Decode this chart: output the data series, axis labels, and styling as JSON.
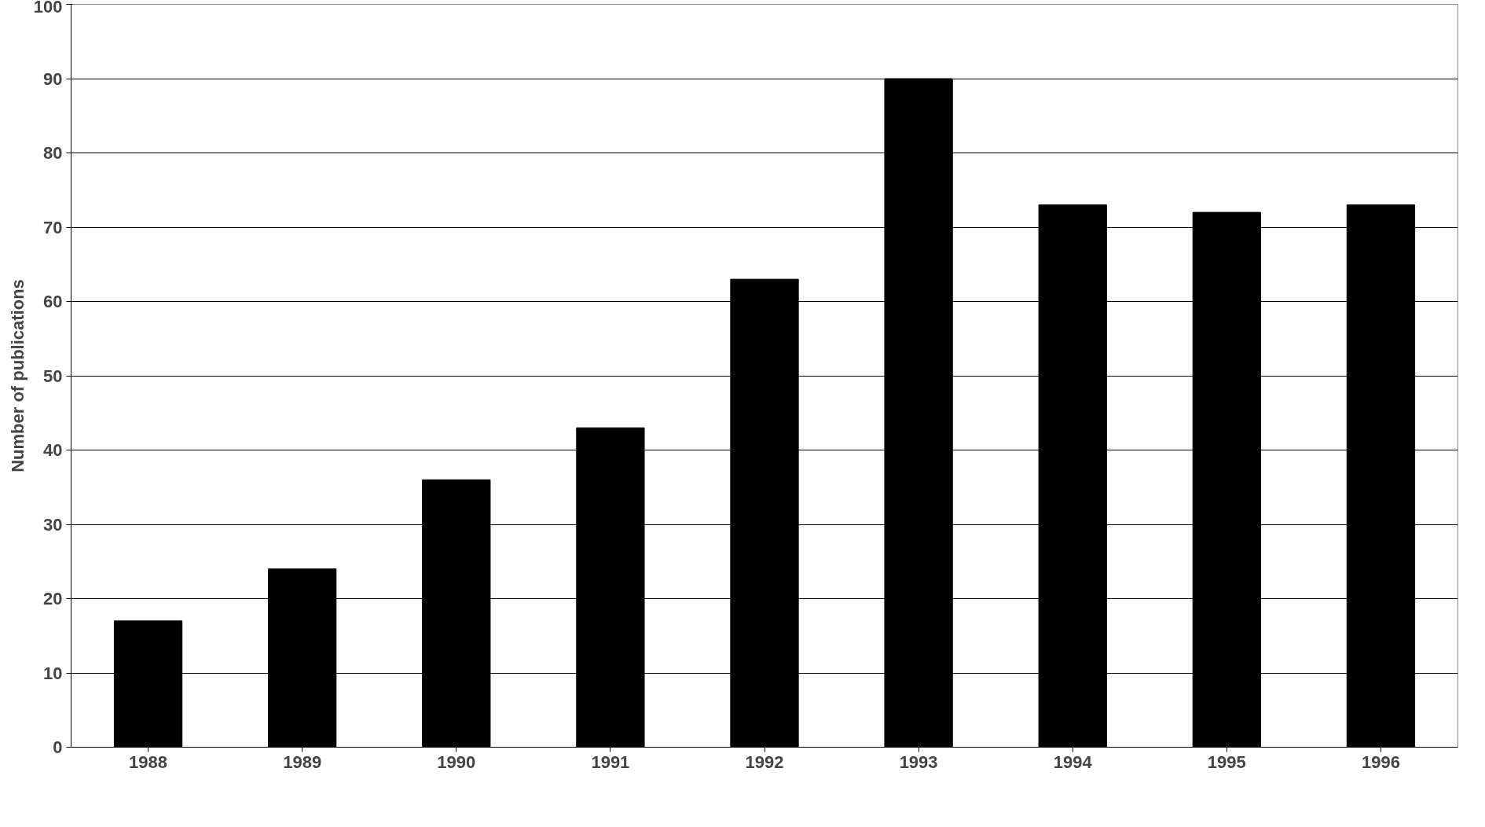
{
  "chart_data": {
    "type": "bar",
    "ylabel": "Number of publications",
    "categories": [
      "1988",
      "1989",
      "1990",
      "1991",
      "1992",
      "1993",
      "1994",
      "1995",
      "1996"
    ],
    "values": [
      17,
      24,
      36,
      43,
      63,
      90,
      73,
      72,
      73
    ],
    "color": "#000000",
    "ylim": [
      0,
      100
    ],
    "yticks": [
      0,
      10,
      20,
      30,
      40,
      50,
      60,
      70,
      80,
      90,
      100
    ],
    "grid": "y"
  }
}
